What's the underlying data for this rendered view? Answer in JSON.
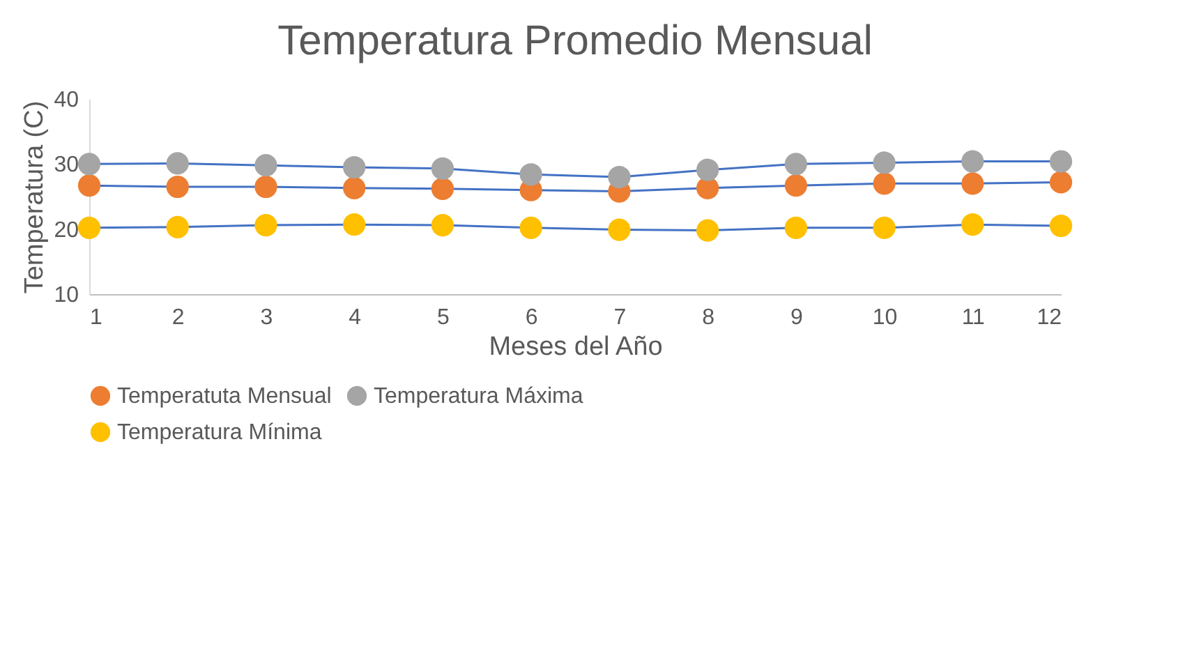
{
  "chart_data": {
    "type": "line",
    "title": "Temperatura Promedio Mensual",
    "xlabel": "Meses del Año",
    "ylabel": "Temperatura (C)",
    "x": [
      1,
      2,
      3,
      4,
      5,
      6,
      7,
      8,
      9,
      10,
      11,
      12
    ],
    "series": [
      {
        "name": "Temperatuta Mensual",
        "color": "#ed7d31",
        "values": [
          26.7,
          26.5,
          26.5,
          26.3,
          26.2,
          26.0,
          25.8,
          26.3,
          26.7,
          27.0,
          27.0,
          27.2
        ]
      },
      {
        "name": "Temperatura Máxima",
        "color": "#a5a5a5",
        "values": [
          30.0,
          30.1,
          29.8,
          29.5,
          29.3,
          28.4,
          28.0,
          29.1,
          30.0,
          30.2,
          30.4,
          30.4
        ]
      },
      {
        "name": "Temperatura Mínima",
        "color": "#ffc000",
        "values": [
          20.2,
          20.3,
          20.6,
          20.7,
          20.6,
          20.2,
          19.9,
          19.8,
          20.2,
          20.2,
          20.7,
          20.5
        ]
      }
    ],
    "xlim": [
      1,
      12
    ],
    "xticks": [
      1,
      2,
      3,
      4,
      5,
      6,
      7,
      8,
      9,
      10,
      11,
      12
    ],
    "ylim": [
      10,
      40
    ],
    "yticks": [
      10,
      20,
      30,
      40
    ],
    "grid": false,
    "legend": "bottom",
    "marker": "circle",
    "line_style": "solid"
  }
}
